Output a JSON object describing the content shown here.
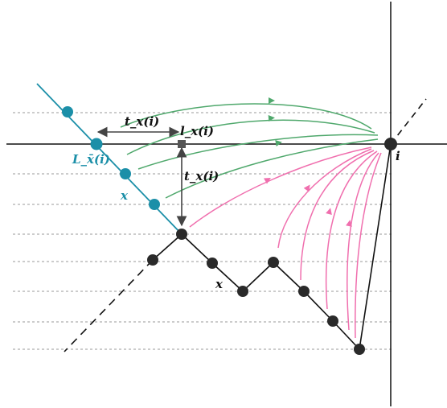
{
  "labels": {
    "t_x_horizontal": "t_x(i)",
    "l_x": "l_x(i)",
    "t_x_vertical": "t_x(i)",
    "L_xbar": "L_x̄(i)",
    "x_teal": "x",
    "x_black": "x",
    "i": "i"
  },
  "colors": {
    "teal": "#1b8fa8",
    "black": "#111111",
    "green": "#4fa86c",
    "pink": "#f06fae",
    "grid": "#9a9a9a",
    "marker": "#555555"
  }
}
